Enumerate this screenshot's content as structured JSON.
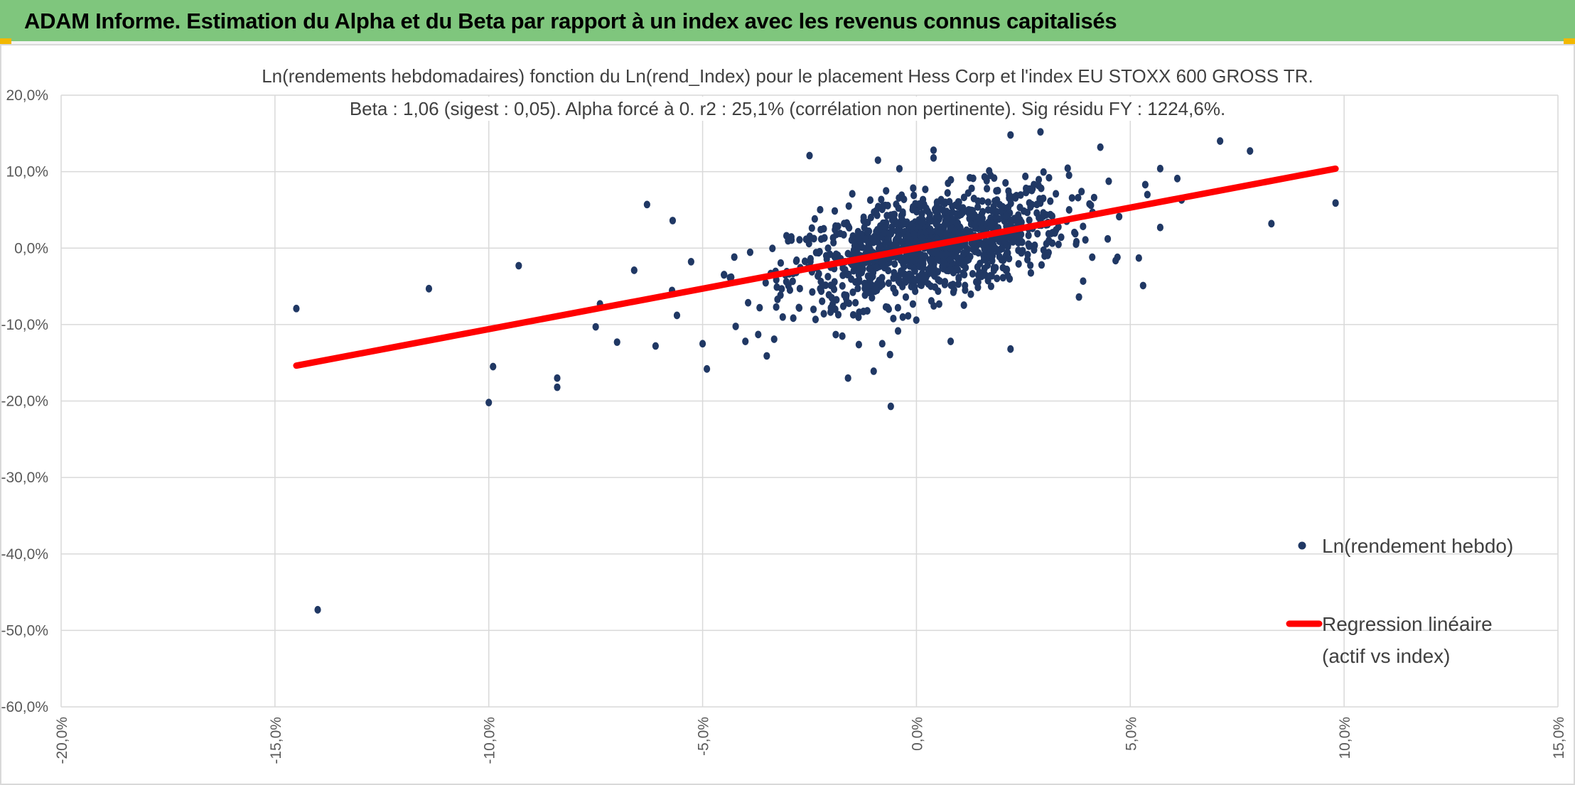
{
  "banner": {
    "title": "ADAM Informe. Estimation du Alpha et du Beta par rapport à un index avec les revenus connus capitalisés",
    "color": "#7fc67d",
    "accent": "#f2b800"
  },
  "chart_data": {
    "type": "scatter",
    "title": [
      "Ln(rendements hebdomadaires) fonction du Ln(rend_Index) pour le placement Hess Corp et l'index EU STOXX 600 GROSS TR.",
      "Beta : 1,06 (sigest : 0,05). Alpha forcé à 0. r2 : 25,1% (corrélation non pertinente). Sig résidu FY : 1224,6%."
    ],
    "xlim": [
      -0.2,
      0.15
    ],
    "ylim": [
      -0.6,
      0.2
    ],
    "x_ticks": [
      -0.2,
      -0.15,
      -0.1,
      -0.05,
      0.0,
      0.05,
      0.1,
      0.15
    ],
    "y_ticks": [
      0.2,
      0.1,
      0.0,
      -0.1,
      -0.2,
      -0.3,
      -0.4,
      -0.5,
      -0.6
    ],
    "x_tick_labels": [
      "-20,0%",
      "-15,0%",
      "-10,0%",
      "-5,0%",
      "0,0%",
      "5,0%",
      "10,0%",
      "15,0%"
    ],
    "y_tick_labels": [
      "20,0%",
      "10,0%",
      "0,0%",
      "-10,0%",
      "-20,0%",
      "-30,0%",
      "-40,0%",
      "-50,0%",
      "-60,0%"
    ],
    "grid": true,
    "legend_position": "right",
    "series": [
      {
        "name": "Ln(rendement hebdo)",
        "kind": "scatter",
        "color": "#203864",
        "cluster": {
          "count": 1150,
          "x_center": 0.003,
          "x_sd": 0.016,
          "beta": 1.06,
          "resid_sd": 0.033
        },
        "points": [
          [
            -0.145,
            -0.079
          ],
          [
            -0.14,
            -0.473
          ],
          [
            -0.114,
            -0.053
          ],
          [
            -0.093,
            -0.023
          ],
          [
            -0.1,
            -0.202
          ],
          [
            -0.099,
            -0.155
          ],
          [
            -0.084,
            -0.182
          ],
          [
            -0.084,
            -0.17
          ],
          [
            -0.074,
            -0.073
          ],
          [
            -0.075,
            -0.103
          ],
          [
            -0.07,
            -0.123
          ],
          [
            -0.063,
            0.057
          ],
          [
            -0.066,
            -0.029
          ],
          [
            -0.061,
            -0.128
          ],
          [
            -0.057,
            0.036
          ],
          [
            -0.056,
            -0.088
          ],
          [
            -0.05,
            -0.125
          ],
          [
            -0.049,
            -0.158
          ],
          [
            -0.045,
            -0.035
          ],
          [
            -0.04,
            -0.122
          ],
          [
            -0.037,
            -0.113
          ],
          [
            -0.035,
            -0.141
          ],
          [
            -0.025,
            0.121
          ],
          [
            -0.02,
            -0.078
          ],
          [
            -0.016,
            -0.17
          ],
          [
            -0.015,
            0.071
          ],
          [
            -0.01,
            -0.161
          ],
          [
            -0.008,
            -0.125
          ],
          [
            -0.006,
            -0.207
          ],
          [
            -0.009,
            0.115
          ],
          [
            0.004,
            0.128
          ],
          [
            0.004,
            0.118
          ],
          [
            0.008,
            -0.122
          ],
          [
            0.017,
            0.101
          ],
          [
            0.022,
            -0.132
          ],
          [
            0.022,
            0.148
          ],
          [
            0.029,
            0.152
          ],
          [
            0.031,
            0.092
          ],
          [
            0.038,
            -0.064
          ],
          [
            0.043,
            0.132
          ],
          [
            0.047,
            -0.012
          ],
          [
            0.052,
            -0.013
          ],
          [
            0.053,
            -0.049
          ],
          [
            0.054,
            0.07
          ],
          [
            0.057,
            0.104
          ],
          [
            0.061,
            0.091
          ],
          [
            0.062,
            0.063
          ],
          [
            0.071,
            0.14
          ],
          [
            0.078,
            0.127
          ],
          [
            0.083,
            0.032
          ],
          [
            0.098,
            0.059
          ],
          [
            0.057,
            0.027
          ]
        ]
      },
      {
        "name": "Regression linéaire (actif vs index)",
        "kind": "line",
        "color": "#ff0000",
        "beta": 1.06,
        "x_range": [
          -0.145,
          0.098
        ]
      }
    ],
    "legend": {
      "scatter_label": "Ln(rendement hebdo)",
      "line_label_1": "Regression linéaire",
      "line_label_2": "(actif vs index)"
    }
  }
}
